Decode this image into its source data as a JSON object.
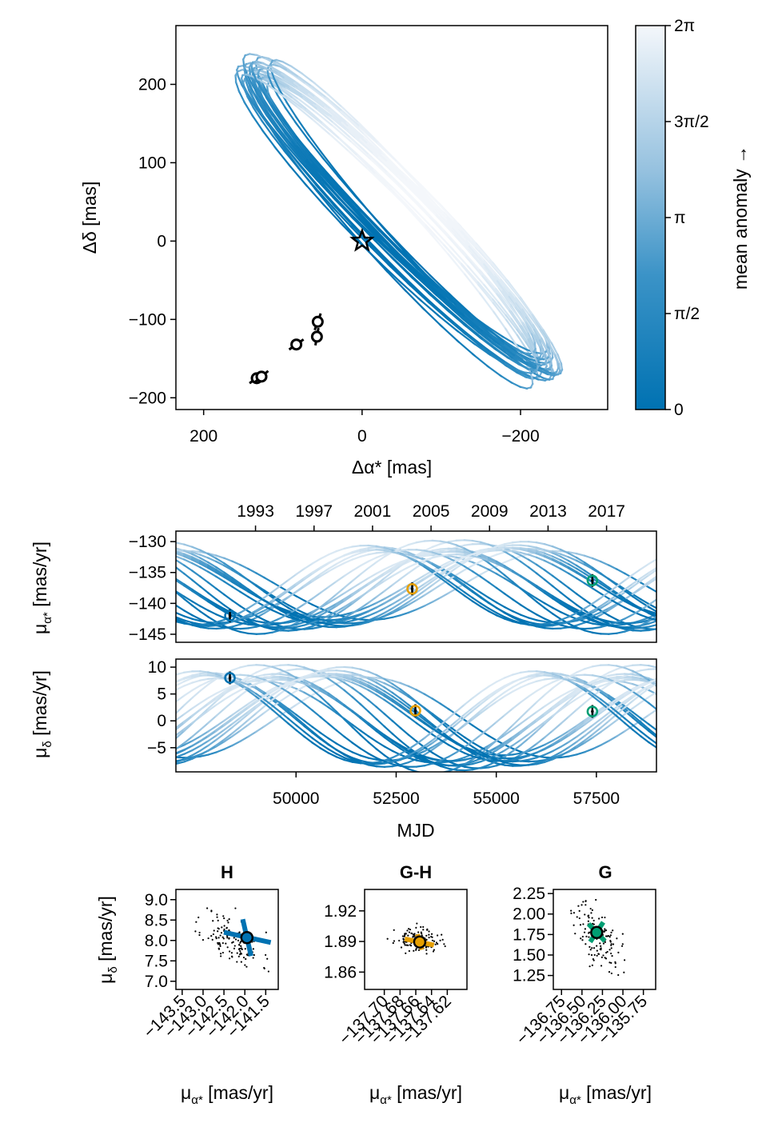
{
  "chart_data": [
    {
      "type": "line",
      "panel": "sky-orbit",
      "xlabel": "Δα* [mas]",
      "ylabel": "Δδ [mas]",
      "xlim": [
        235,
        -310
      ],
      "ylim": [
        -215,
        275
      ],
      "xticks": [
        200,
        0,
        -200
      ],
      "yticks": [
        -200,
        -100,
        0,
        100,
        200
      ],
      "xtick_labels": [
        "200",
        "0",
        "−200"
      ],
      "ytick_labels": [
        "−200",
        "−100",
        "0",
        "100",
        "200"
      ],
      "orbit_ellipse": {
        "center": [
          -42,
          30
        ],
        "semi_major": 266,
        "semi_minor": 37,
        "angle_deg": 46,
        "spread": 14
      },
      "star": {
        "x": 0,
        "y": 0
      },
      "observations": [
        {
          "x": 133,
          "y": -175,
          "err_angle": 35
        },
        {
          "x": 127,
          "y": -173,
          "err_angle": 40
        },
        {
          "x": 83,
          "y": -132,
          "err_angle": 35
        },
        {
          "x": 57,
          "y": -122,
          "err_angle": 80
        },
        {
          "x": 56,
          "y": -103,
          "err_angle": 70
        }
      ],
      "colorbar": {
        "label": "mean anomaly →",
        "ticks": [
          0,
          1.5708,
          3.1416,
          4.7124,
          6.2832
        ],
        "tick_labels": [
          "0",
          "π/2",
          "π",
          "3π/2",
          "2π"
        ],
        "color_low": "#0072b2",
        "color_high": "#f4f7fb"
      }
    },
    {
      "type": "line",
      "panel": "pm-ra-time",
      "ylabel": "μα* [mas/yr]",
      "xlim": [
        47000,
        59000
      ],
      "ylim": [
        -146.3,
        -128.3
      ],
      "yticks": [
        -145,
        -140,
        -135,
        -130
      ],
      "ytick_labels": [
        "−145",
        "−140",
        "−135",
        "−130"
      ],
      "top_axis_years": [
        "1993",
        "1997",
        "2001",
        "2005",
        "2009",
        "2013",
        "2017"
      ],
      "top_axis_mjd": [
        48988,
        50449,
        51910,
        53371,
        54832,
        56293,
        57754
      ],
      "model": {
        "P": 8800,
        "amp": 6.2,
        "off": -137.2,
        "phase": 0.6
      },
      "observations": [
        {
          "name": "H",
          "mjd": 48349,
          "value": -142.0,
          "color": "#0072b2"
        },
        {
          "name": "G-H",
          "mjd": 52900,
          "value": -137.65,
          "color": "#e69f00"
        },
        {
          "name": "G",
          "mjd": 57400,
          "value": -136.3,
          "color": "#009e73"
        }
      ]
    },
    {
      "type": "line",
      "panel": "pm-dec-time",
      "ylabel": "μδ [mas/yr]",
      "xlabel": "MJD",
      "xlim": [
        47000,
        59000
      ],
      "ylim": [
        -9.5,
        11.5
      ],
      "xticks": [
        50000,
        52500,
        55000,
        57500
      ],
      "xtick_labels": [
        "50000",
        "52500",
        "55000",
        "57500"
      ],
      "yticks": [
        -5,
        0,
        5,
        10
      ],
      "ytick_labels": [
        "−5",
        "0",
        "5",
        "10"
      ],
      "model": {
        "P": 8800,
        "amp": 8.3,
        "off": 0.5,
        "phase": 3.75
      },
      "observations": [
        {
          "name": "H",
          "mjd": 48349,
          "value": 8.0,
          "color": "#0072b2"
        },
        {
          "name": "G-H",
          "mjd": 52980,
          "value": 1.9,
          "color": "#e69f00"
        },
        {
          "name": "G",
          "mjd": 57400,
          "value": 1.75,
          "color": "#009e73"
        }
      ]
    },
    {
      "type": "scatter",
      "panel": "H",
      "title": "H",
      "xlabel": "μα* [mas/yr]",
      "ylabel": "μδ [mas/yr]",
      "xlim": [
        -143.65,
        -141.2
      ],
      "ylim": [
        6.8,
        9.25
      ],
      "xticks": [
        -143.5,
        -143.0,
        -142.5,
        -142.0,
        -141.5
      ],
      "xtick_labels": [
        "−143.5",
        "−143.0",
        "−142.5",
        "−142.0",
        "−141.5"
      ],
      "yticks": [
        7.0,
        7.5,
        8.0,
        8.5,
        9.0
      ],
      "ytick_labels": [
        "7.0",
        "7.5",
        "8.0",
        "8.5",
        "9.0"
      ],
      "obs": {
        "x": -141.95,
        "y": 8.07,
        "color": "#0072b2"
      },
      "cross_a": [
        [
          -142.5,
          8.2
        ],
        [
          -141.38,
          7.95
        ]
      ],
      "cross_b": [
        [
          -142.05,
          8.52
        ],
        [
          -141.85,
          7.62
        ]
      ],
      "cloud": {
        "cx": -142.3,
        "cy": 8.0,
        "sx": 0.35,
        "sy": 0.35,
        "rho": -0.5,
        "n": 130,
        "seed": 11
      }
    },
    {
      "type": "scatter",
      "panel": "G-H",
      "title": "G-H",
      "xlabel": "μα* [mas/yr]",
      "xlim": [
        -137.725,
        -137.595
      ],
      "ylim": [
        1.843,
        1.941
      ],
      "xticks": [
        -137.7,
        -137.68,
        -137.66,
        -137.64,
        -137.62
      ],
      "xtick_labels": [
        "−137.70",
        "−137.68",
        "−137.66",
        "−137.64",
        "−137.62"
      ],
      "yticks": [
        1.86,
        1.89,
        1.92
      ],
      "ytick_labels": [
        "1.86",
        "1.89",
        "1.92"
      ],
      "obs": {
        "x": -137.655,
        "y": 1.8895,
        "color": "#e69f00"
      },
      "cross_a": [
        [
          -137.674,
          1.8925
        ],
        [
          -137.637,
          1.8865
        ]
      ],
      "cross_b": [
        [
          -137.658,
          1.897
        ],
        [
          -137.652,
          1.882
        ]
      ],
      "cloud": {
        "cx": -137.658,
        "cy": 1.891,
        "sx": 0.014,
        "sy": 0.0055,
        "rho": -0.2,
        "n": 130,
        "seed": 23
      }
    },
    {
      "type": "scatter",
      "panel": "G",
      "title": "G",
      "xlabel": "μα* [mas/yr]",
      "xlim": [
        -136.85,
        -135.6
      ],
      "ylim": [
        1.08,
        2.3
      ],
      "xticks": [
        -136.75,
        -136.5,
        -136.25,
        -136.0,
        -135.75
      ],
      "xtick_labels": [
        "−136.75",
        "−136.50",
        "−136.25",
        "−136.00",
        "−135.75"
      ],
      "yticks": [
        1.25,
        1.5,
        1.75,
        2.0,
        2.25
      ],
      "ytick_labels": [
        "1.25",
        "1.50",
        "1.75",
        "2.00",
        "2.25"
      ],
      "obs": {
        "x": -136.32,
        "y": 1.775,
        "color": "#009e73"
      },
      "cross_a": [
        [
          -136.4,
          1.66
        ],
        [
          -136.24,
          1.9
        ]
      ],
      "cross_b": [
        [
          -136.42,
          1.88
        ],
        [
          -136.22,
          1.67
        ]
      ],
      "cloud": {
        "cx": -136.3,
        "cy": 1.72,
        "sx": 0.14,
        "sy": 0.2,
        "rho": -0.45,
        "n": 130,
        "seed": 37
      }
    }
  ]
}
